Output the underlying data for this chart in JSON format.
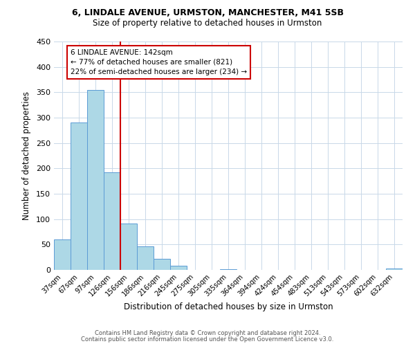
{
  "title": "6, LINDALE AVENUE, URMSTON, MANCHESTER, M41 5SB",
  "subtitle": "Size of property relative to detached houses in Urmston",
  "xlabel": "Distribution of detached houses by size in Urmston",
  "ylabel": "Number of detached properties",
  "bar_labels": [
    "37sqm",
    "67sqm",
    "97sqm",
    "126sqm",
    "156sqm",
    "186sqm",
    "216sqm",
    "245sqm",
    "275sqm",
    "305sqm",
    "335sqm",
    "364sqm",
    "394sqm",
    "424sqm",
    "454sqm",
    "483sqm",
    "513sqm",
    "543sqm",
    "573sqm",
    "602sqm",
    "632sqm"
  ],
  "bar_values": [
    60,
    290,
    355,
    192,
    91,
    47,
    22,
    8,
    0,
    0,
    2,
    0,
    0,
    0,
    0,
    0,
    0,
    0,
    0,
    0,
    3
  ],
  "bar_color": "#add8e6",
  "bar_edge_color": "#5b9bd5",
  "vline_color": "#cc0000",
  "annotation_text": "6 LINDALE AVENUE: 142sqm\n← 77% of detached houses are smaller (821)\n22% of semi-detached houses are larger (234) →",
  "annotation_box_color": "#ffffff",
  "annotation_box_edge": "#cc0000",
  "ylim": [
    0,
    450
  ],
  "yticks": [
    0,
    50,
    100,
    150,
    200,
    250,
    300,
    350,
    400,
    450
  ],
  "footer1": "Contains HM Land Registry data © Crown copyright and database right 2024.",
  "footer2": "Contains public sector information licensed under the Open Government Licence v3.0.",
  "bg_color": "#ffffff",
  "grid_color": "#c8d8e8"
}
